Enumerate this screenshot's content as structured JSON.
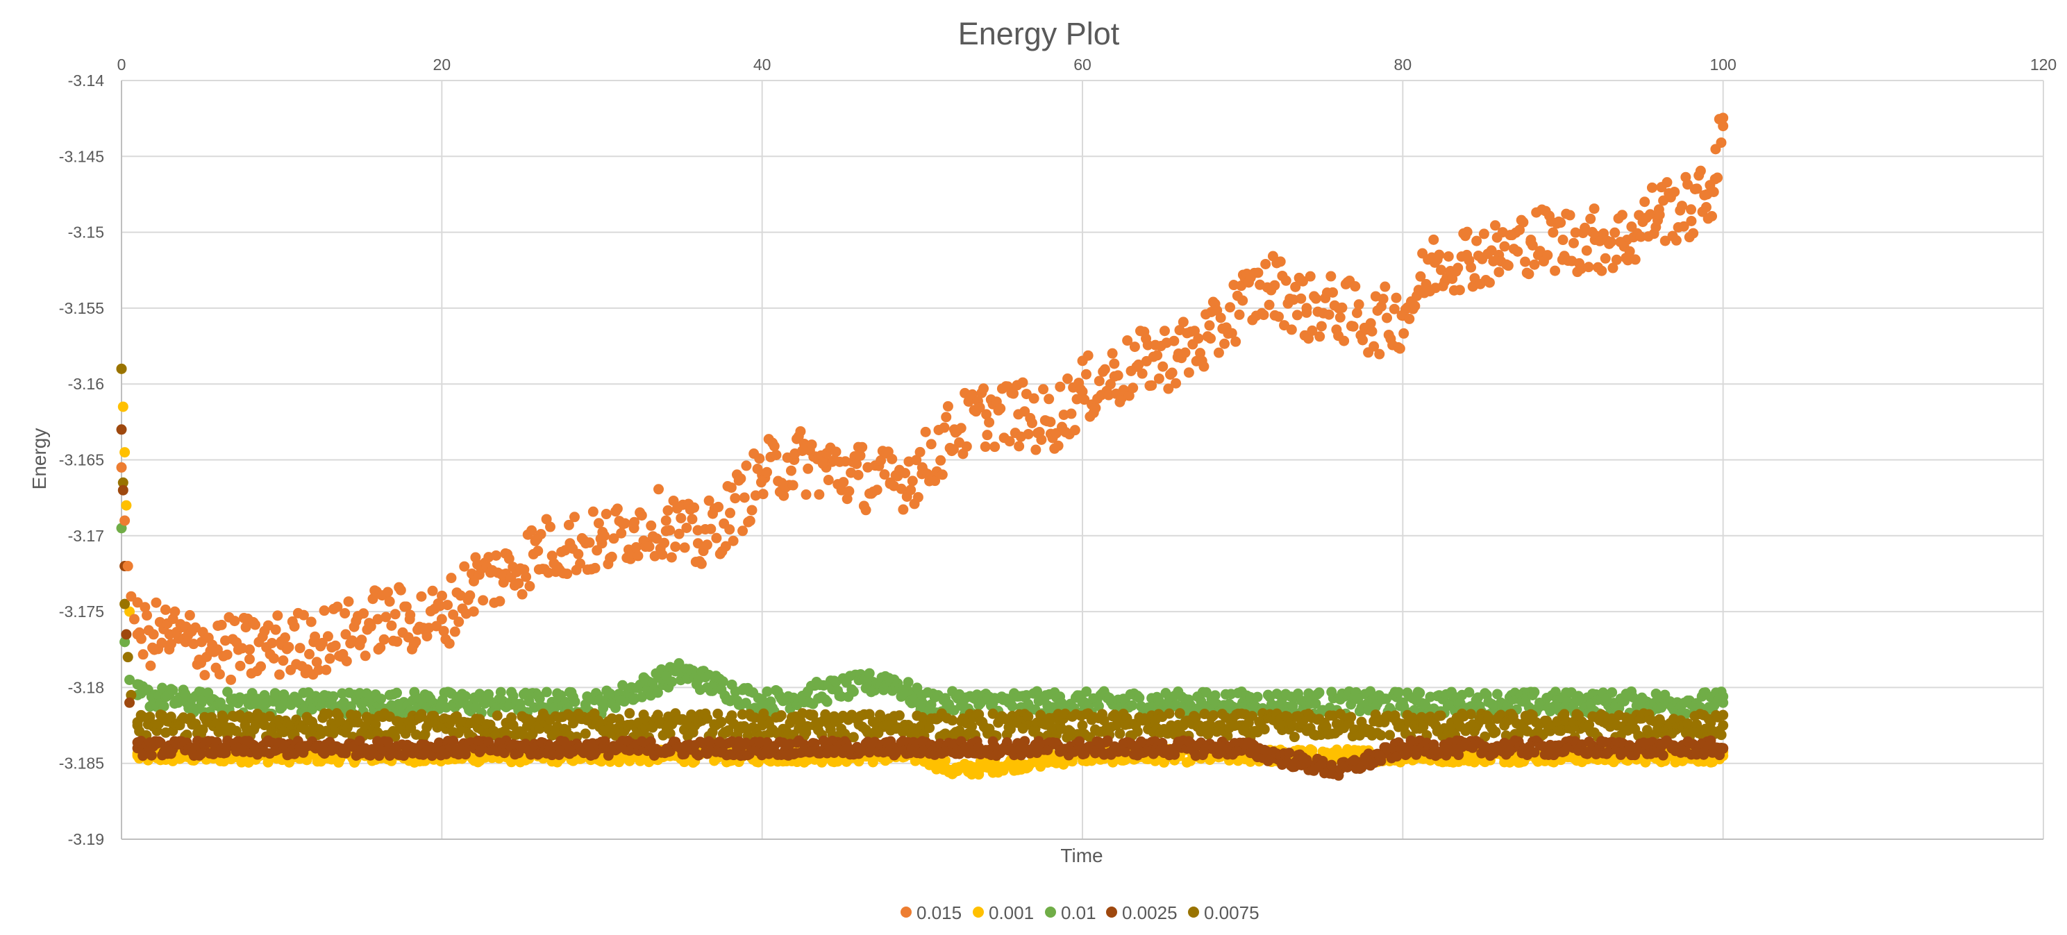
{
  "chart_data": {
    "type": "scatter",
    "title": "Energy Plot",
    "xlabel": "Time",
    "ylabel": "Energy",
    "xlim": [
      0,
      120
    ],
    "ylim": [
      -3.19,
      -3.14
    ],
    "xticks": [
      0,
      20,
      40,
      60,
      80,
      100,
      120
    ],
    "yticks": [
      -3.14,
      -3.145,
      -3.15,
      -3.155,
      -3.16,
      -3.165,
      -3.17,
      -3.175,
      -3.18,
      -3.185,
      -3.19
    ],
    "xtick_labels": [
      "0",
      "20",
      "40",
      "60",
      "80",
      "100",
      "120"
    ],
    "ytick_labels": [
      "-3.14",
      "-3.145",
      "-3.15",
      "-3.155",
      "-3.16",
      "-3.165",
      "-3.17",
      "-3.175",
      "-3.18",
      "-3.185",
      "-3.19"
    ],
    "grid": true,
    "legend_position": "bottom",
    "series": [
      {
        "name": "0.015",
        "color": "#ED7D31",
        "x": [
          0,
          0.2,
          0.4,
          0.6,
          0.8,
          1,
          2,
          3,
          4,
          5,
          6,
          8,
          10,
          12,
          14,
          16,
          18,
          20,
          22,
          24,
          26,
          28,
          30,
          32,
          34,
          36,
          38,
          40,
          42,
          44,
          46,
          48,
          50,
          52,
          54,
          56,
          58,
          60,
          62,
          64,
          66,
          68,
          70,
          72,
          74,
          76,
          78,
          80,
          82,
          84,
          86,
          88,
          90,
          92,
          94,
          96,
          98,
          99,
          99.5,
          100
        ],
        "y": [
          -3.1655,
          -3.169,
          -3.172,
          -3.174,
          -3.1755,
          -3.1765,
          -3.1765,
          -3.1765,
          -3.177,
          -3.177,
          -3.1775,
          -3.1775,
          -3.1772,
          -3.177,
          -3.1765,
          -3.1755,
          -3.1755,
          -3.1755,
          -3.173,
          -3.1725,
          -3.171,
          -3.1705,
          -3.1705,
          -3.1695,
          -3.169,
          -3.1705,
          -3.1685,
          -3.166,
          -3.165,
          -3.1655,
          -3.166,
          -3.1665,
          -3.1655,
          -3.163,
          -3.162,
          -3.162,
          -3.1625,
          -3.1605,
          -3.1595,
          -3.1585,
          -3.158,
          -3.157,
          -3.1545,
          -3.1535,
          -3.155,
          -3.155,
          -3.156,
          -3.1555,
          -3.152,
          -3.1515,
          -3.1515,
          -3.1505,
          -3.1505,
          -3.1505,
          -3.1505,
          -3.1485,
          -3.1485,
          -3.1475,
          -3.1465,
          -3.143
        ]
      },
      {
        "name": "0.001",
        "color": "#FFC000",
        "x": [
          0,
          0.1,
          0.2,
          0.3,
          0.5,
          1,
          5,
          10,
          20,
          30,
          40,
          50,
          52,
          60,
          70,
          80,
          90,
          100
        ],
        "y": [
          -3.159,
          -3.1615,
          -3.1645,
          -3.168,
          -3.175,
          -3.1845,
          -3.1845,
          -3.1845,
          -3.1845,
          -3.1845,
          -3.1845,
          -3.1845,
          -3.1855,
          -3.1845,
          -3.1845,
          -3.1845,
          -3.1845,
          -3.1845
        ]
      },
      {
        "name": "0.01",
        "color": "#70AD47",
        "x": [
          0,
          0.2,
          0.5,
          1,
          5,
          10,
          20,
          30,
          35,
          40,
          48,
          50,
          60,
          70,
          80,
          90,
          100
        ],
        "y": [
          -3.1695,
          -3.177,
          -3.1795,
          -3.1805,
          -3.181,
          -3.181,
          -3.181,
          -3.181,
          -3.179,
          -3.181,
          -3.1795,
          -3.181,
          -3.181,
          -3.181,
          -3.181,
          -3.181,
          -3.181
        ]
      },
      {
        "name": "0.0025",
        "color": "#9E480E",
        "x": [
          0,
          0.1,
          0.2,
          0.3,
          0.5,
          1,
          10,
          20,
          30,
          40,
          50,
          60,
          70,
          76,
          80,
          90,
          100
        ],
        "y": [
          -3.163,
          -3.167,
          -3.172,
          -3.1765,
          -3.181,
          -3.184,
          -3.184,
          -3.184,
          -3.184,
          -3.184,
          -3.184,
          -3.184,
          -3.184,
          -3.1855,
          -3.184,
          -3.184,
          -3.184
        ]
      },
      {
        "name": "0.0075",
        "color": "#997300",
        "x": [
          0,
          0.1,
          0.2,
          0.4,
          0.6,
          1,
          10,
          20,
          30,
          40,
          50,
          60,
          70,
          80,
          90,
          100
        ],
        "y": [
          -3.159,
          -3.1665,
          -3.1745,
          -3.178,
          -3.1805,
          -3.1825,
          -3.1825,
          -3.1825,
          -3.1825,
          -3.1825,
          -3.1825,
          -3.1825,
          -3.1825,
          -3.1825,
          -3.1825,
          -3.1825
        ]
      }
    ]
  }
}
